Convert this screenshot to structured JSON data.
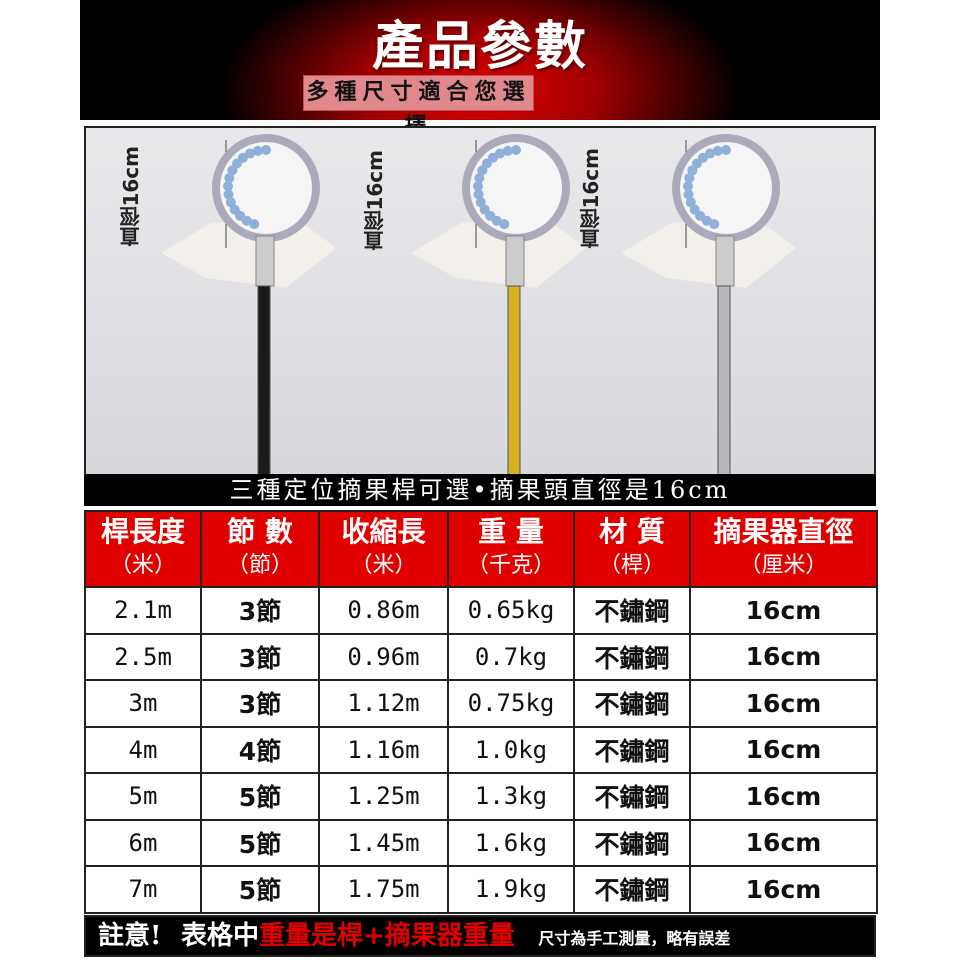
{
  "header": {
    "title": "產品參數",
    "subtitle": "多種尺寸適合您選擇"
  },
  "photo": {
    "diameter_label": "直徑16cm",
    "nets": [
      {
        "pole_color": "#1a1a1a"
      },
      {
        "pole_color": "#d8b020"
      },
      {
        "pole_color": "#b8b8bc"
      }
    ]
  },
  "caption": "三種定位摘果桿可選•摘果頭直徑是16cm",
  "table": {
    "headers": [
      {
        "label": "桿長度",
        "unit": "（米）"
      },
      {
        "label": "節 數",
        "unit": "（節）"
      },
      {
        "label": "收縮長",
        "unit": "（米）"
      },
      {
        "label": "重 量",
        "unit": "（千克）"
      },
      {
        "label": "材 質",
        "unit": "（桿）"
      },
      {
        "label": "摘果器直徑",
        "unit": "（厘米）"
      }
    ],
    "rows": [
      [
        "2.1m",
        "3節",
        "0.86m",
        "0.65kg",
        "不鏽鋼",
        "16cm"
      ],
      [
        "2.5m",
        "3節",
        "0.96m",
        "0.7kg",
        "不鏽鋼",
        "16cm"
      ],
      [
        "3m",
        "3節",
        "1.12m",
        "0.75kg",
        "不鏽鋼",
        "16cm"
      ],
      [
        "4m",
        "4節",
        "1.16m",
        "1.0kg",
        "不鏽鋼",
        "16cm"
      ],
      [
        "5m",
        "5節",
        "1.25m",
        "1.3kg",
        "不鏽鋼",
        "16cm"
      ],
      [
        "6m",
        "5節",
        "1.45m",
        "1.6kg",
        "不鏽鋼",
        "16cm"
      ],
      [
        "7m",
        "5節",
        "1.75m",
        "1.9kg",
        "不鏽鋼",
        "16cm"
      ]
    ]
  },
  "footer": {
    "note": "註意!",
    "prefix": "表格中",
    "highlight": "重量是桿+摘果器重量",
    "small": "尺寸為手工測量，略有誤差"
  },
  "colors": {
    "accent": "#e00000",
    "background": "#000000"
  }
}
